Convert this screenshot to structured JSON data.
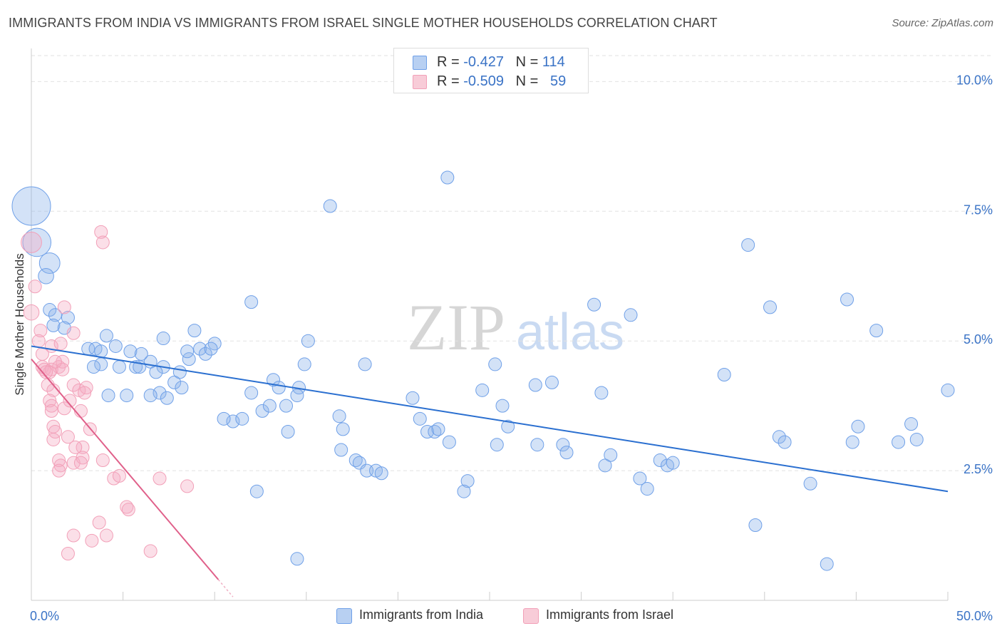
{
  "title": "IMMIGRANTS FROM INDIA VS IMMIGRANTS FROM ISRAEL SINGLE MOTHER HOUSEHOLDS CORRELATION CHART",
  "source": "Source: ZipAtlas.com",
  "watermark": {
    "zip": "ZIP",
    "atlas": "atlas"
  },
  "colors": {
    "india": "#6fa0e8",
    "india_line": "#2a6fd0",
    "israel": "#f2a0b8",
    "israel_line": "#e0608a",
    "axis_text": "#3a73c6"
  },
  "legend_top": {
    "india": {
      "r_label": "R = ",
      "r_value": "-0.427",
      "n_label": "N = ",
      "n_value": "114"
    },
    "israel": {
      "r_label": "R = ",
      "r_value": "-0.509",
      "n_label": "N = ",
      "n_value": "59"
    }
  },
  "legend_bottom": {
    "india": "Immigrants from India",
    "israel": "Immigrants from Israel"
  },
  "chart_data": {
    "type": "scatter",
    "title": "IMMIGRANTS FROM INDIA VS IMMIGRANTS FROM ISRAEL SINGLE MOTHER HOUSEHOLDS CORRELATION CHART",
    "xlabel": "",
    "ylabel": "Single Mother Households",
    "xlim": [
      0,
      50
    ],
    "ylim": [
      0,
      10.5
    ],
    "x_tick_labels": [
      "0.0%",
      "50.0%"
    ],
    "y_ticks": [
      2.5,
      5.0,
      7.5,
      10.0
    ],
    "y_tick_labels": [
      "2.5%",
      "5.0%",
      "7.5%",
      "10.0%"
    ],
    "grid": true,
    "legend_position": "top-center",
    "series": [
      {
        "name": "Immigrants from India",
        "trend": {
          "x": [
            0,
            50
          ],
          "y": [
            4.9,
            2.1
          ]
        },
        "points": [
          [
            0.0,
            7.6,
            3
          ],
          [
            0.3,
            6.9,
            2.2
          ],
          [
            1.0,
            6.5,
            1.6
          ],
          [
            0.8,
            6.25,
            1.2
          ],
          [
            1.0,
            5.6,
            1
          ],
          [
            1.3,
            5.5,
            1
          ],
          [
            2.0,
            5.45,
            1
          ],
          [
            1.2,
            5.3,
            1
          ],
          [
            1.8,
            5.25,
            1
          ],
          [
            4.1,
            5.1,
            1
          ],
          [
            3.1,
            4.85,
            1
          ],
          [
            3.5,
            4.85,
            1
          ],
          [
            4.6,
            4.9,
            1
          ],
          [
            5.4,
            4.8,
            1
          ],
          [
            3.8,
            4.55,
            1
          ],
          [
            3.4,
            4.5,
            1
          ],
          [
            4.8,
            4.5,
            1
          ],
          [
            6.5,
            4.6,
            1
          ],
          [
            5.7,
            4.5,
            1
          ],
          [
            7.2,
            4.5,
            1
          ],
          [
            6.8,
            4.4,
            1
          ],
          [
            8.1,
            4.4,
            1
          ],
          [
            7.8,
            4.2,
            1
          ],
          [
            8.2,
            4.1,
            1
          ],
          [
            7.0,
            4.0,
            1
          ],
          [
            4.2,
            3.95,
            1
          ],
          [
            5.2,
            3.95,
            1
          ],
          [
            6.5,
            3.95,
            1
          ],
          [
            7.4,
            3.9,
            1
          ],
          [
            8.6,
            4.65,
            1
          ],
          [
            9.2,
            4.85,
            1
          ],
          [
            8.9,
            5.2,
            1
          ],
          [
            8.5,
            4.8,
            1
          ],
          [
            9.5,
            4.75,
            1
          ],
          [
            10.0,
            4.95,
            1
          ],
          [
            9.8,
            4.85,
            1
          ],
          [
            12.0,
            5.75,
            1
          ],
          [
            13.2,
            4.25,
            1
          ],
          [
            12.0,
            4.0,
            1
          ],
          [
            13.5,
            4.1,
            1
          ],
          [
            14.6,
            4.1,
            1
          ],
          [
            14.5,
            3.95,
            1
          ],
          [
            15.1,
            5.0,
            1
          ],
          [
            14.9,
            4.55,
            1
          ],
          [
            11.0,
            3.45,
            1
          ],
          [
            11.5,
            3.5,
            1
          ],
          [
            12.6,
            3.65,
            1
          ],
          [
            13.0,
            3.75,
            1
          ],
          [
            13.9,
            3.75,
            1
          ],
          [
            14.0,
            3.25,
            1
          ],
          [
            12.3,
            2.1,
            1
          ],
          [
            14.5,
            0.8,
            1
          ],
          [
            16.3,
            7.6,
            1
          ],
          [
            16.8,
            3.55,
            1
          ],
          [
            17.0,
            3.3,
            1
          ],
          [
            16.9,
            2.9,
            1
          ],
          [
            17.7,
            2.7,
            1
          ],
          [
            17.9,
            2.65,
            1
          ],
          [
            18.3,
            2.5,
            1
          ],
          [
            18.8,
            2.5,
            1
          ],
          [
            18.2,
            4.55,
            1
          ],
          [
            19.1,
            2.45,
            1
          ],
          [
            20.8,
            3.9,
            1
          ],
          [
            21.2,
            3.5,
            1
          ],
          [
            21.6,
            3.25,
            1
          ],
          [
            22.0,
            3.25,
            1
          ],
          [
            22.2,
            3.3,
            1
          ],
          [
            22.8,
            3.05,
            1
          ],
          [
            23.8,
            2.3,
            1
          ],
          [
            23.6,
            2.1,
            1
          ],
          [
            22.7,
            8.15,
            1
          ],
          [
            24.6,
            4.05,
            1
          ],
          [
            25.3,
            4.55,
            1
          ],
          [
            25.7,
            3.75,
            1
          ],
          [
            25.4,
            3.0,
            1
          ],
          [
            26.0,
            3.35,
            1
          ],
          [
            27.5,
            4.15,
            1
          ],
          [
            28.4,
            4.2,
            1
          ],
          [
            27.6,
            3.0,
            1
          ],
          [
            29.0,
            3.0,
            1
          ],
          [
            29.2,
            2.85,
            1
          ],
          [
            30.7,
            5.7,
            1
          ],
          [
            31.1,
            4.0,
            1
          ],
          [
            31.3,
            2.6,
            1
          ],
          [
            31.6,
            2.8,
            1
          ],
          [
            32.7,
            5.5,
            1
          ],
          [
            33.2,
            2.35,
            1
          ],
          [
            33.6,
            2.15,
            1
          ],
          [
            34.3,
            2.7,
            1
          ],
          [
            34.7,
            2.6,
            1
          ],
          [
            35.0,
            2.65,
            1
          ],
          [
            37.8,
            4.35,
            1
          ],
          [
            39.1,
            6.85,
            1
          ],
          [
            39.5,
            1.45,
            1
          ],
          [
            40.3,
            5.65,
            1
          ],
          [
            40.8,
            3.15,
            1
          ],
          [
            41.1,
            3.05,
            1
          ],
          [
            42.5,
            2.25,
            1
          ],
          [
            43.4,
            0.7,
            1
          ],
          [
            44.5,
            5.8,
            1
          ],
          [
            44.8,
            3.05,
            1
          ],
          [
            45.1,
            3.35,
            1
          ],
          [
            46.1,
            5.2,
            1
          ],
          [
            47.3,
            3.05,
            1
          ],
          [
            48.0,
            3.4,
            1
          ],
          [
            48.3,
            3.1,
            1
          ],
          [
            50.0,
            4.05,
            1
          ],
          [
            3.8,
            4.8,
            1
          ],
          [
            6.0,
            4.75,
            1
          ],
          [
            10.5,
            3.5,
            1
          ],
          [
            7.2,
            5.05,
            1
          ],
          [
            5.9,
            4.5,
            1
          ]
        ]
      },
      {
        "name": "Immigrants from Israel",
        "trend": {
          "x": [
            0,
            10.2
          ],
          "y": [
            4.65,
            0.4
          ]
        },
        "points": [
          [
            0.0,
            6.9,
            1.6
          ],
          [
            0.2,
            6.05,
            1
          ],
          [
            0.0,
            5.55,
            1.2
          ],
          [
            0.5,
            5.2,
            1
          ],
          [
            0.4,
            5.0,
            1
          ],
          [
            0.6,
            4.75,
            1
          ],
          [
            0.6,
            4.5,
            1
          ],
          [
            1.0,
            4.4,
            1
          ],
          [
            1.1,
            4.9,
            1
          ],
          [
            1.5,
            4.5,
            1
          ],
          [
            1.6,
            4.95,
            1
          ],
          [
            1.7,
            4.6,
            1
          ],
          [
            2.3,
            5.15,
            1
          ],
          [
            0.7,
            4.45,
            1
          ],
          [
            1.1,
            4.45,
            1
          ],
          [
            0.9,
            4.15,
            1
          ],
          [
            1.2,
            4.05,
            1
          ],
          [
            1.8,
            5.65,
            1
          ],
          [
            2.3,
            4.15,
            1
          ],
          [
            2.6,
            4.05,
            1
          ],
          [
            3.0,
            4.1,
            1
          ],
          [
            1.0,
            3.85,
            1
          ],
          [
            1.1,
            3.75,
            1
          ],
          [
            1.8,
            3.7,
            1
          ],
          [
            2.1,
            3.85,
            1
          ],
          [
            1.1,
            3.65,
            1
          ],
          [
            1.2,
            3.35,
            1
          ],
          [
            1.3,
            3.25,
            1
          ],
          [
            2.0,
            3.15,
            1
          ],
          [
            2.7,
            3.65,
            1
          ],
          [
            3.2,
            3.3,
            1
          ],
          [
            1.2,
            3.1,
            1
          ],
          [
            1.5,
            2.7,
            1
          ],
          [
            1.6,
            2.6,
            1
          ],
          [
            2.3,
            2.65,
            1
          ],
          [
            2.8,
            2.95,
            1
          ],
          [
            2.8,
            2.75,
            1
          ],
          [
            2.7,
            2.65,
            1
          ],
          [
            3.9,
            2.7,
            1
          ],
          [
            1.5,
            2.5,
            1
          ],
          [
            4.5,
            2.35,
            1
          ],
          [
            7.0,
            2.35,
            1
          ],
          [
            8.5,
            2.2,
            1
          ],
          [
            5.2,
            1.8,
            1
          ],
          [
            5.3,
            1.75,
            1
          ],
          [
            2.3,
            1.25,
            1
          ],
          [
            3.3,
            1.15,
            1
          ],
          [
            3.7,
            1.5,
            1
          ],
          [
            4.1,
            1.25,
            1
          ],
          [
            2.0,
            0.9,
            1
          ],
          [
            6.5,
            0.95,
            1
          ],
          [
            3.8,
            7.1,
            1
          ],
          [
            3.9,
            6.9,
            1
          ],
          [
            1.7,
            4.45,
            1
          ],
          [
            2.9,
            4.0,
            1
          ],
          [
            0.8,
            4.4,
            1
          ],
          [
            1.3,
            4.6,
            1
          ],
          [
            2.4,
            2.95,
            1
          ],
          [
            4.8,
            2.4,
            1
          ]
        ]
      }
    ]
  }
}
